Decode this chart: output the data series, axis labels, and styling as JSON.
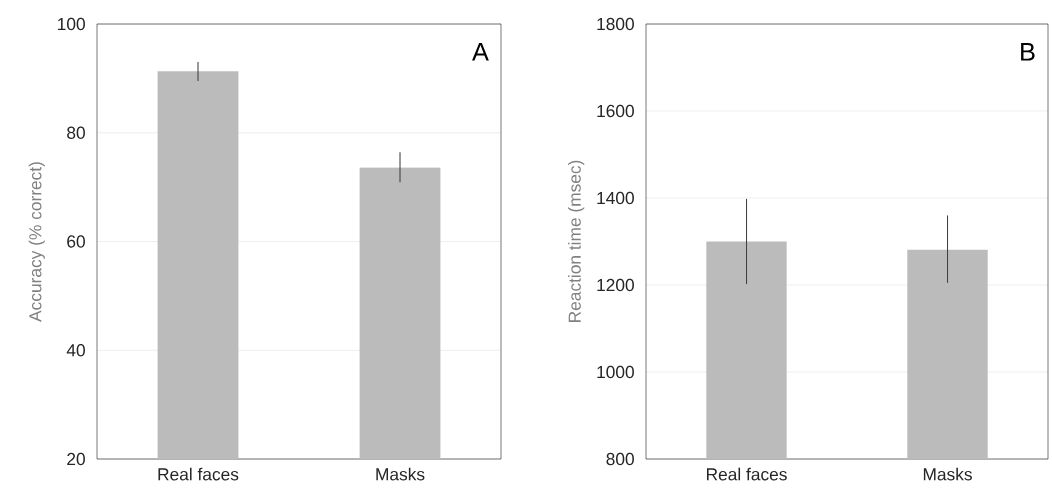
{
  "chart_data": [
    {
      "type": "bar",
      "ylabel": "Accuracy (% correct)",
      "categories": [
        "Real faces",
        "Masks"
      ],
      "values": [
        91.3,
        73.6
      ],
      "errors": [
        [
          89.5,
          93.0
        ],
        [
          70.9,
          76.4
        ]
      ],
      "color": "#bbbbbb",
      "ylim": [
        20,
        100
      ],
      "yticks": [
        20,
        40,
        60,
        80,
        100
      ],
      "grid": "y",
      "annotations": [
        "A"
      ]
    },
    {
      "type": "bar",
      "ylabel": "Reaction time (msec)",
      "categories": [
        "Real faces",
        "Masks"
      ],
      "values": [
        1300,
        1281
      ],
      "errors": [
        [
          1202,
          1398
        ],
        [
          1205,
          1360
        ]
      ],
      "color": "#bbbbbb",
      "ylim": [
        800,
        1800
      ],
      "yticks": [
        800,
        1000,
        1200,
        1400,
        1600,
        1800
      ],
      "grid": "y",
      "annotations": [
        "B"
      ]
    }
  ]
}
